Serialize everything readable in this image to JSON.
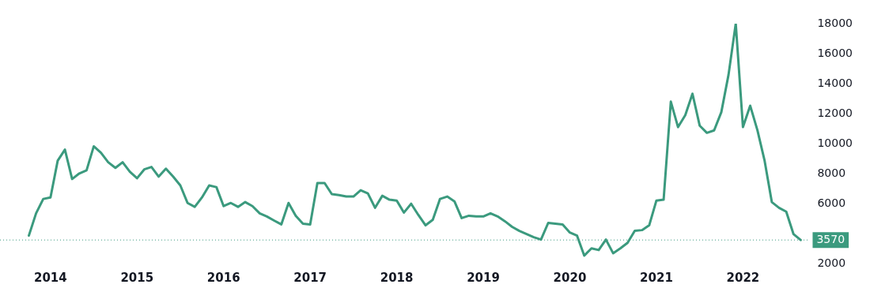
{
  "chart_data": {
    "type": "line",
    "x": [
      "2013-10",
      "2013-11",
      "2013-12",
      "2014-01",
      "2014-02",
      "2014-03",
      "2014-04",
      "2014-05",
      "2014-06",
      "2014-07",
      "2014-08",
      "2014-09",
      "2014-10",
      "2014-11",
      "2014-12",
      "2015-01",
      "2015-02",
      "2015-03",
      "2015-04",
      "2015-05",
      "2015-06",
      "2015-07",
      "2015-08",
      "2015-09",
      "2015-10",
      "2015-11",
      "2015-12",
      "2016-01",
      "2016-02",
      "2016-03",
      "2016-04",
      "2016-05",
      "2016-06",
      "2016-07",
      "2016-08",
      "2016-09",
      "2016-10",
      "2016-11",
      "2016-12",
      "2017-01",
      "2017-02",
      "2017-03",
      "2017-04",
      "2017-05",
      "2017-06",
      "2017-07",
      "2017-08",
      "2017-09",
      "2017-10",
      "2017-11",
      "2017-12",
      "2018-01",
      "2018-02",
      "2018-03",
      "2018-04",
      "2018-05",
      "2018-06",
      "2018-07",
      "2018-08",
      "2018-09",
      "2018-10",
      "2018-11",
      "2018-12",
      "2019-01",
      "2019-02",
      "2019-03",
      "2019-04",
      "2019-05",
      "2019-06",
      "2019-07",
      "2019-08",
      "2019-09",
      "2019-10",
      "2019-11",
      "2019-12",
      "2020-01",
      "2020-02",
      "2020-03",
      "2020-04",
      "2020-05",
      "2020-06",
      "2020-07",
      "2020-08",
      "2020-09",
      "2020-10",
      "2020-11",
      "2020-12",
      "2021-01",
      "2021-02",
      "2021-03",
      "2021-04",
      "2021-05",
      "2021-06",
      "2021-07",
      "2021-08",
      "2021-09",
      "2021-10",
      "2021-11",
      "2021-12",
      "2022-01",
      "2022-02",
      "2022-03",
      "2022-04",
      "2022-05",
      "2022-06",
      "2022-07",
      "2022-08",
      "2022-09"
    ],
    "series": [
      {
        "color": "#3b9a7e",
        "values": [
          3860,
          5350,
          6310,
          6410,
          8860,
          9600,
          7640,
          8010,
          8220,
          9820,
          9390,
          8760,
          8380,
          8760,
          8120,
          7690,
          8280,
          8440,
          7800,
          8330,
          7800,
          7210,
          6040,
          5780,
          6410,
          7210,
          7100,
          5830,
          6040,
          5780,
          6100,
          5830,
          5350,
          5140,
          4870,
          4610,
          6040,
          5190,
          4660,
          4610,
          7370,
          7370,
          6630,
          6570,
          6470,
          6470,
          6890,
          6680,
          5720,
          6520,
          6260,
          6200,
          5400,
          5990,
          5240,
          4550,
          4920,
          6310,
          6470,
          6150,
          5030,
          5190,
          5140,
          5140,
          5350,
          5140,
          4820,
          4450,
          4180,
          3970,
          3760,
          3600,
          4710,
          4660,
          4610,
          4070,
          3860,
          2530,
          3010,
          2900,
          3600,
          2690,
          3010,
          3380,
          4180,
          4230,
          4550,
          6200,
          6260,
          12800,
          11100,
          11900,
          13330,
          11200,
          10720,
          10880,
          12100,
          14600,
          18000,
          11100,
          12530,
          10900,
          8860,
          6100,
          5720,
          5460,
          3970,
          3570
        ]
      }
    ],
    "xlim": [
      "2013-06",
      "2022-10"
    ],
    "xticks": [
      "2014",
      "2015",
      "2016",
      "2017",
      "2018",
      "2019",
      "2020",
      "2021",
      "2022"
    ],
    "ylim": [
      2000,
      18000
    ],
    "yticks": [
      2000,
      6000,
      8000,
      10000,
      12000,
      14000,
      16000,
      18000
    ],
    "ref_lines": [
      {
        "axis": "y",
        "value": 3570,
        "label": "3570",
        "color": "#3b9a7e",
        "line_style": "dotted"
      }
    ],
    "grid": false,
    "legend": false,
    "marker": "none",
    "line_style": "solid"
  }
}
